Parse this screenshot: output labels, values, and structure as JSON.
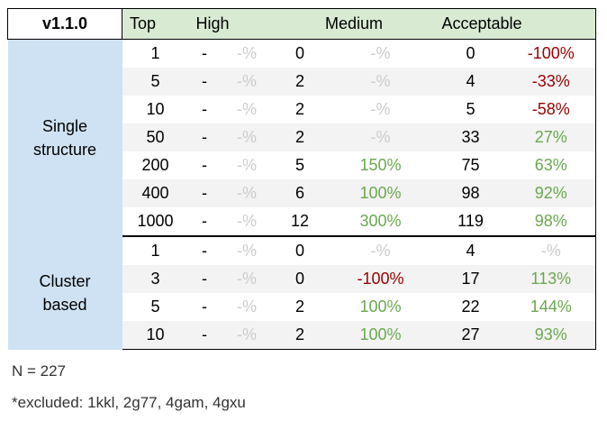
{
  "headers": {
    "version": "v1.1.0",
    "top": "Top",
    "high": "High",
    "medium": "Medium",
    "acceptable": "Acceptable"
  },
  "groups": [
    {
      "label_lines": [
        "Single",
        "structure"
      ],
      "rows": [
        {
          "top": "1",
          "high": "-",
          "high_pct": "-%",
          "medium": "0",
          "medium_pct": "-%",
          "acceptable": "0",
          "acceptable_pct": "-100%"
        },
        {
          "top": "5",
          "high": "-",
          "high_pct": "-%",
          "medium": "2",
          "medium_pct": "-%",
          "acceptable": "4",
          "acceptable_pct": "-33%"
        },
        {
          "top": "10",
          "high": "-",
          "high_pct": "-%",
          "medium": "2",
          "medium_pct": "-%",
          "acceptable": "5",
          "acceptable_pct": "-58%"
        },
        {
          "top": "50",
          "high": "-",
          "high_pct": "-%",
          "medium": "2",
          "medium_pct": "-%",
          "acceptable": "33",
          "acceptable_pct": "27%"
        },
        {
          "top": "200",
          "high": "-",
          "high_pct": "-%",
          "medium": "5",
          "medium_pct": "150%",
          "acceptable": "75",
          "acceptable_pct": "63%"
        },
        {
          "top": "400",
          "high": "-",
          "high_pct": "-%",
          "medium": "6",
          "medium_pct": "100%",
          "acceptable": "98",
          "acceptable_pct": "92%"
        },
        {
          "top": "1000",
          "high": "-",
          "high_pct": "-%",
          "medium": "12",
          "medium_pct": "300%",
          "acceptable": "119",
          "acceptable_pct": "98%"
        }
      ]
    },
    {
      "label_lines": [
        "Cluster",
        "based"
      ],
      "rows": [
        {
          "top": "1",
          "high": "-",
          "high_pct": "-%",
          "medium": "0",
          "medium_pct": "-%",
          "acceptable": "4",
          "acceptable_pct": "-%"
        },
        {
          "top": "3",
          "high": "-",
          "high_pct": "-%",
          "medium": "0",
          "medium_pct": "-100%",
          "acceptable": "17",
          "acceptable_pct": "113%"
        },
        {
          "top": "5",
          "high": "-",
          "high_pct": "-%",
          "medium": "2",
          "medium_pct": "100%",
          "acceptable": "22",
          "acceptable_pct": "144%"
        },
        {
          "top": "10",
          "high": "-",
          "high_pct": "-%",
          "medium": "2",
          "medium_pct": "100%",
          "acceptable": "27",
          "acceptable_pct": "93%"
        }
      ]
    }
  ],
  "colors": {
    "negative": "#990000",
    "positive": "#6aa84f",
    "empty": "#cccccc",
    "header_bg": "#d9ead3",
    "group_bg": "#cfe2f3",
    "alt_row_bg": "#f3f3f3"
  },
  "footnotes": {
    "n": "N = 227",
    "excluded": "*excluded: 1kkl, 2g77, 4gam, 4gxu"
  }
}
